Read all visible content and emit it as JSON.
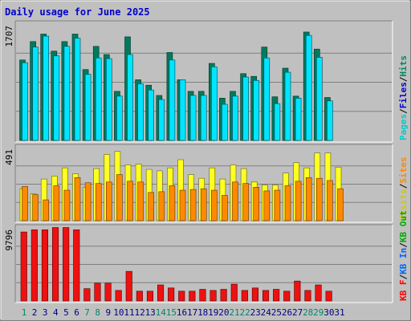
{
  "page": {
    "title": "Daily usage for June 2025"
  },
  "colors": {
    "pages": "#00aaaa",
    "files": "#0044cc",
    "hits": "#008866",
    "visits": "#ffff00",
    "sites": "#ff8800",
    "kb_in": "#0066ff",
    "kb_out": "#00aa00",
    "kb_f": "#ff0000"
  },
  "chart_data": [
    {
      "type": "bar",
      "max_label": "1707",
      "legend": [
        {
          "label": "Pages",
          "color": "#00cccc"
        },
        {
          "label": "/",
          "color": "#000000"
        },
        {
          "label": "Files",
          "color": "#0000cc"
        },
        {
          "label": "/",
          "color": "#000000"
        },
        {
          "label": "Hits",
          "color": "#008866"
        }
      ],
      "ylim": [
        0,
        1707
      ],
      "series": [
        {
          "name": "Hits",
          "values": [
            1180,
            1450,
            1560,
            1310,
            1450,
            1560,
            1040,
            1380,
            1260,
            720,
            1520,
            890,
            810,
            660,
            1290,
            890,
            720,
            720,
            1130,
            620,
            720,
            980,
            940,
            1370,
            640,
            1060,
            650,
            1590,
            1340,
            630,
            null
          ]
        },
        {
          "name": "Files",
          "values": [
            1140,
            1370,
            1530,
            1240,
            1380,
            1500,
            970,
            1210,
            1200,
            650,
            1260,
            830,
            740,
            600,
            1180,
            890,
            660,
            660,
            1080,
            530,
            650,
            930,
            880,
            1210,
            540,
            1000,
            620,
            1540,
            1220,
            580,
            null
          ]
        },
        {
          "name": "Pages",
          "values": [
            360,
            410,
            430,
            380,
            410,
            420,
            300,
            380,
            340,
            220,
            400,
            270,
            250,
            200,
            370,
            260,
            230,
            220,
            330,
            180,
            210,
            300,
            280,
            380,
            190,
            300,
            200,
            440,
            370,
            190,
            null
          ]
        }
      ]
    },
    {
      "type": "bar",
      "max_label": "491",
      "legend": [
        {
          "label": "Visits",
          "color": "#cccc00"
        },
        {
          "label": "/",
          "color": "#000000"
        },
        {
          "label": "Sites",
          "color": "#ff8800"
        }
      ],
      "ylim": [
        0,
        491
      ],
      "series": [
        {
          "name": "Visits",
          "values": [
            215,
            180,
            280,
            300,
            355,
            315,
            225,
            350,
            445,
            465,
            375,
            380,
            345,
            335,
            355,
            410,
            310,
            285,
            355,
            280,
            375,
            350,
            260,
            240,
            240,
            320,
            390,
            355,
            455,
            455,
            360
          ]
        },
        {
          "name": "Sites",
          "values": [
            230,
            175,
            140,
            235,
            205,
            290,
            255,
            250,
            260,
            310,
            265,
            260,
            190,
            195,
            235,
            205,
            210,
            215,
            205,
            170,
            260,
            250,
            225,
            200,
            205,
            235,
            265,
            290,
            285,
            270,
            215
          ]
        }
      ]
    },
    {
      "type": "bar",
      "max_label": "9796",
      "legend": [
        {
          "label": "KB F",
          "color": "#ff0000"
        },
        {
          "label": "/",
          "color": "#000000"
        },
        {
          "label": "KB In",
          "color": "#0066ff"
        },
        {
          "label": "/",
          "color": "#000000"
        },
        {
          "label": "KB Out",
          "color": "#00aa00"
        }
      ],
      "ylim": [
        0,
        9796
      ],
      "series": [
        {
          "name": "KB F",
          "values": [
            9250,
            9540,
            9540,
            9850,
            9850,
            9540,
            1650,
            2390,
            2390,
            1410,
            3970,
            1310,
            1310,
            2150,
            1740,
            1310,
            1310,
            1560,
            1410,
            1560,
            2250,
            1410,
            1740,
            1410,
            1560,
            1310,
            2670,
            1410,
            2150,
            1310,
            null
          ]
        }
      ]
    }
  ],
  "x_labels": [
    {
      "label": "1",
      "color": "#008866"
    },
    {
      "label": "2",
      "color": "#000080"
    },
    {
      "label": "3",
      "color": "#000080"
    },
    {
      "label": "4",
      "color": "#000080"
    },
    {
      "label": "5",
      "color": "#000080"
    },
    {
      "label": "6",
      "color": "#000080"
    },
    {
      "label": "7",
      "color": "#008866"
    },
    {
      "label": "8",
      "color": "#008866"
    },
    {
      "label": "9",
      "color": "#000080"
    },
    {
      "label": "10",
      "color": "#000080"
    },
    {
      "label": "11",
      "color": "#000080"
    },
    {
      "label": "12",
      "color": "#000080"
    },
    {
      "label": "13",
      "color": "#000080"
    },
    {
      "label": "14",
      "color": "#008866"
    },
    {
      "label": "15",
      "color": "#008866"
    },
    {
      "label": "16",
      "color": "#000080"
    },
    {
      "label": "17",
      "color": "#000080"
    },
    {
      "label": "18",
      "color": "#000080"
    },
    {
      "label": "19",
      "color": "#000080"
    },
    {
      "label": "20",
      "color": "#000080"
    },
    {
      "label": "21",
      "color": "#008866"
    },
    {
      "label": "22",
      "color": "#008866"
    },
    {
      "label": "23",
      "color": "#000080"
    },
    {
      "label": "24",
      "color": "#000080"
    },
    {
      "label": "25",
      "color": "#000080"
    },
    {
      "label": "26",
      "color": "#000080"
    },
    {
      "label": "27",
      "color": "#000080"
    },
    {
      "label": "28",
      "color": "#008866"
    },
    {
      "label": "29",
      "color": "#008866"
    },
    {
      "label": "30",
      "color": "#000080"
    },
    {
      "label": "31",
      "color": "#000080"
    }
  ]
}
